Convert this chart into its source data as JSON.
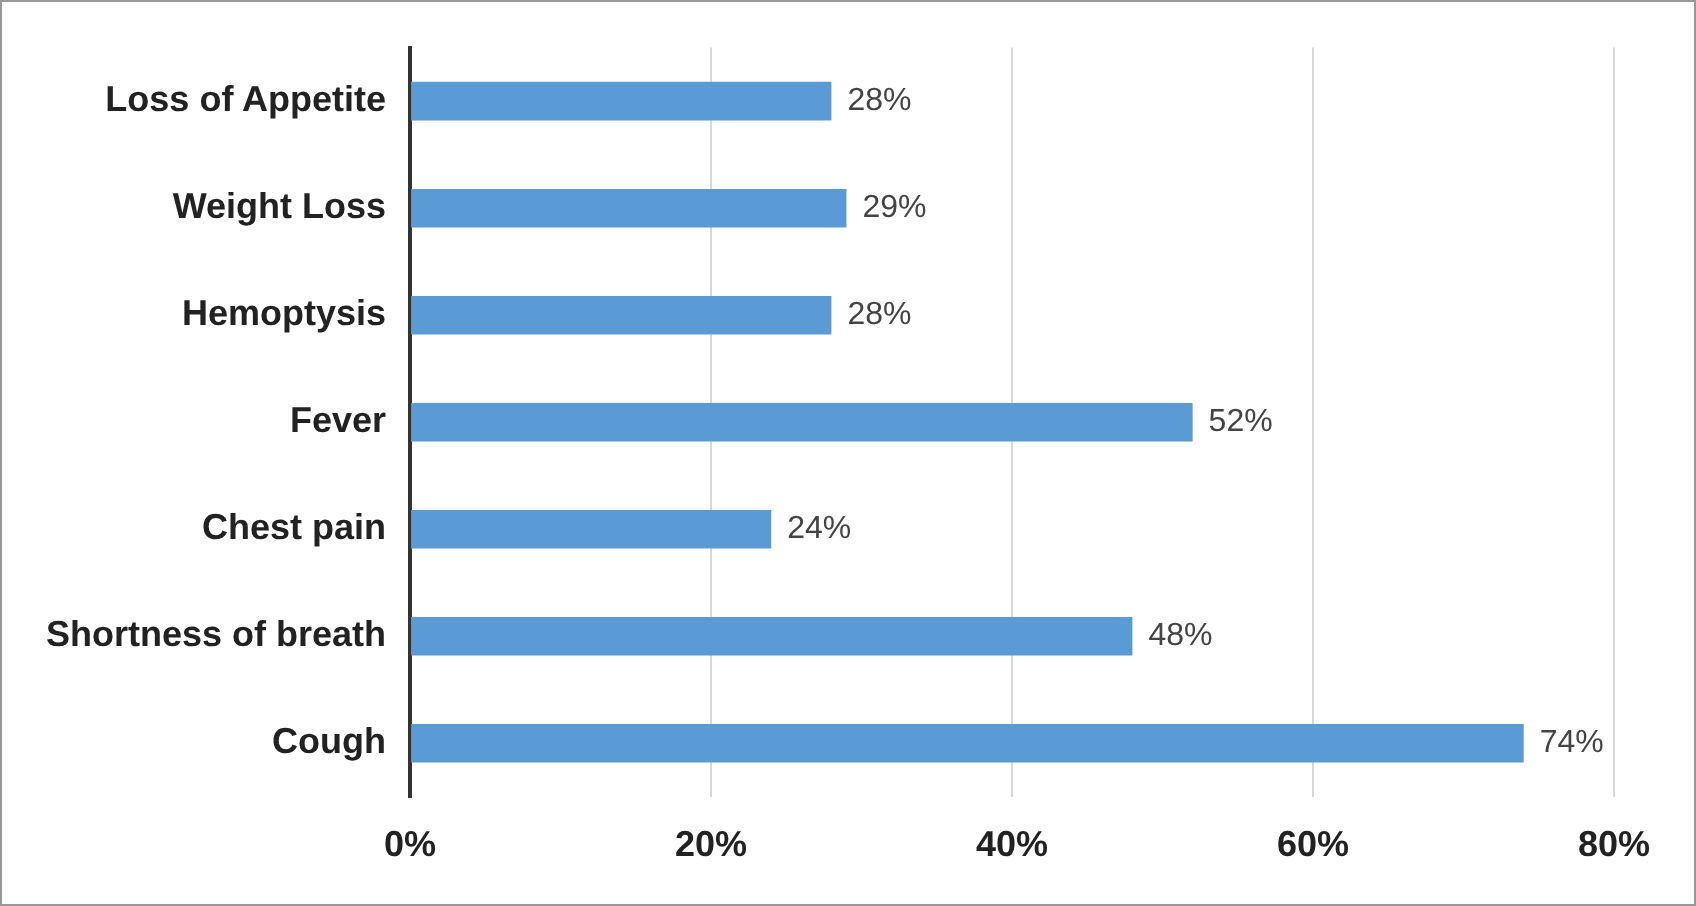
{
  "chart_data": {
    "type": "bar",
    "orientation": "horizontal",
    "categories": [
      "Loss of Appetite",
      "Weight Loss",
      "Hemoptysis",
      "Fever",
      "Chest pain",
      "Shortness of breath",
      "Cough"
    ],
    "values": [
      28,
      29,
      28,
      52,
      24,
      48,
      74
    ],
    "value_labels": [
      "28%",
      "29%",
      "28%",
      "52%",
      "24%",
      "48%",
      "74%"
    ],
    "color": "#5b9bd5",
    "xlim": [
      0,
      80
    ],
    "xticks": [
      {
        "value": 0,
        "label": "0%"
      },
      {
        "value": 20,
        "label": "20%"
      },
      {
        "value": 40,
        "label": "40%"
      },
      {
        "value": 60,
        "label": "60%"
      },
      {
        "value": 80,
        "label": "80%"
      }
    ],
    "grid": "x",
    "legend": false
  }
}
